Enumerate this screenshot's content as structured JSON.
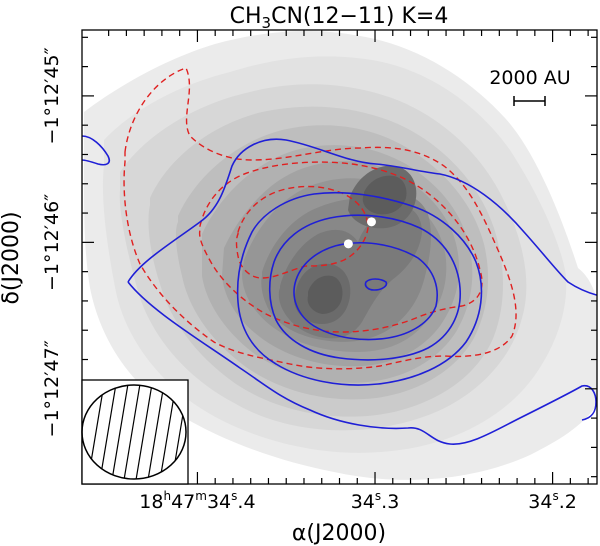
{
  "chart_data": {
    "type": "contour",
    "title_parts": {
      "pre": "CH",
      "sub": "3",
      "post": "CN(12−11) K=4"
    },
    "xlabel": "α(J2000)",
    "ylabel": "δ(J2000)",
    "x_ticks": [
      {
        "ra_s": 34.4,
        "label": "18h47m34.s4",
        "parts": [
          "18",
          "h",
          "47",
          "m",
          "34",
          "s",
          ".4"
        ]
      },
      {
        "ra_s": 34.3,
        "label": "34.s3",
        "parts": [
          "34",
          "s",
          ".3"
        ]
      },
      {
        "ra_s": 34.2,
        "label": "34.s2",
        "parts": [
          "34",
          "s",
          ".2"
        ]
      }
    ],
    "y_ticks": [
      {
        "dec_arcsec": 45,
        "label": "−1°12′45″"
      },
      {
        "dec_arcsec": 46,
        "label": "−1°12′46″"
      },
      {
        "dec_arcsec": 47,
        "label": "−1°12′47″"
      }
    ],
    "ra_range_s": [
      34.465,
      34.175
    ],
    "dec_range_arcsec": [
      44.55,
      47.65
    ],
    "scale_bar": {
      "label": "2000 AU"
    },
    "grayscale_levels": 12,
    "contour_series": [
      {
        "name": "blue solid contours",
        "color": "#1f1fd6",
        "style": "solid",
        "levels": 4
      },
      {
        "name": "red dashed contours",
        "color": "#e02020",
        "style": "dashed",
        "levels": 3
      }
    ],
    "markers": [
      {
        "name": "source-1",
        "ra_s": 34.315,
        "dec_arcsec": 46.01,
        "color": "#ffffff"
      },
      {
        "name": "source-2",
        "ra_s": 34.302,
        "dec_arcsec": 45.86,
        "color": "#ffffff"
      }
    ],
    "beam": {
      "shape": "ellipse",
      "hatched": true
    }
  }
}
